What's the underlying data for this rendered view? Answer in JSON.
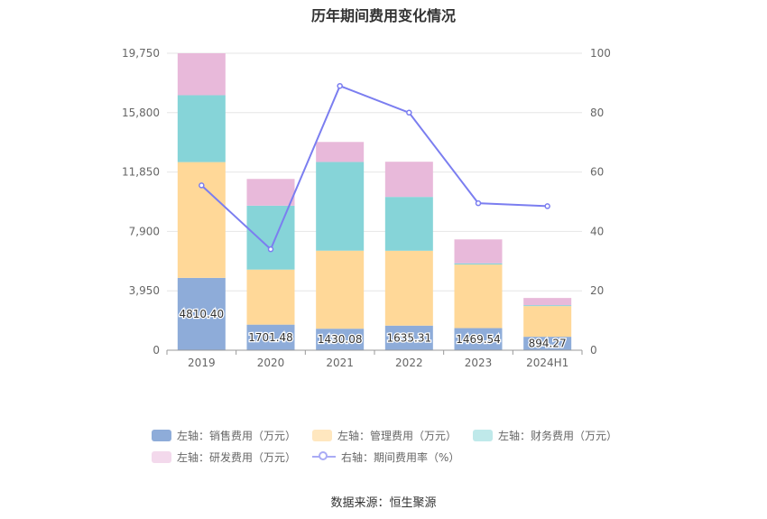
{
  "title": "历年期间费用变化情况",
  "source": "数据来源：恒生聚源",
  "chart_data": {
    "type": "bar",
    "stacked": true,
    "title": "历年期间费用变化情况",
    "categories": [
      "2019",
      "2020",
      "2021",
      "2022",
      "2023",
      "2024H1"
    ],
    "left_axis": {
      "ticks": [
        "0",
        "3,950",
        "7,900",
        "11,850",
        "15,800",
        "19,750"
      ],
      "ylim": [
        0,
        19750
      ]
    },
    "right_axis": {
      "ticks": [
        "0",
        "20",
        "40",
        "60",
        "80",
        "100"
      ],
      "ylim": [
        0,
        100
      ]
    },
    "series": [
      {
        "name": "左轴：销售费用（万元）",
        "axis": "left",
        "color": "#8eacd9",
        "values": [
          4810.4,
          1701.48,
          1430.08,
          1635.31,
          1469.54,
          894.27
        ],
        "labels": [
          "4810.40",
          "1701.48",
          "1430.08",
          "1635.31",
          "1469.54",
          "894.27"
        ]
      },
      {
        "name": "左轴：管理费用（万元）",
        "axis": "left",
        "color": "#ffd898",
        "values": [
          7700,
          3660,
          5190,
          4980,
          4230,
          2040
        ]
      },
      {
        "name": "左轴：财务费用（万元）",
        "axis": "left",
        "color": "#86d4d8",
        "values": [
          4450,
          4250,
          5900,
          3580,
          80,
          60
        ]
      },
      {
        "name": "左轴：研发费用（万元）",
        "axis": "left",
        "color": "#e8b9da",
        "values": [
          2790,
          1780,
          1330,
          2340,
          1590,
          480
        ]
      },
      {
        "name": "右轴：期间费用率（%）",
        "axis": "right",
        "type": "line",
        "color": "#7b7ef0",
        "values": [
          55.5,
          34,
          89,
          80,
          49.5,
          48.5
        ]
      }
    ],
    "legend": "bottom-center",
    "grid": true
  }
}
